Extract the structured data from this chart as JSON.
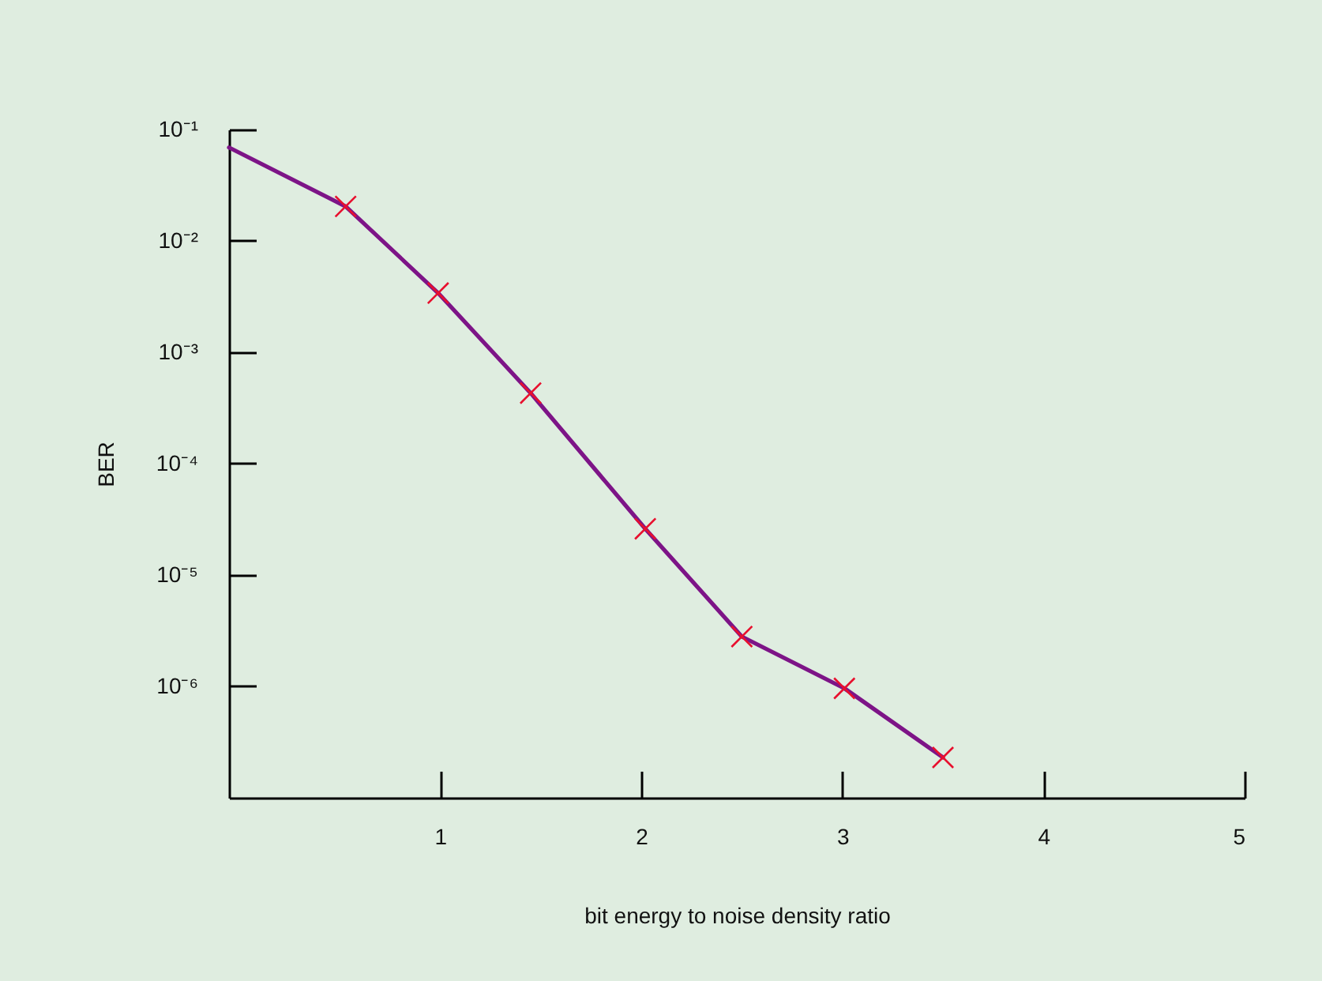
{
  "chart_data": {
    "type": "line",
    "xlabel": "bit energy to noise density ratio",
    "ylabel": "BER",
    "xlim": [
      -0.05,
      5
    ],
    "xticks": [
      1,
      2,
      3,
      4,
      5
    ],
    "ylim": [
      1e-07,
      0.1
    ],
    "yticks": [
      {
        "value": 0.1,
        "label": "10⁻¹"
      },
      {
        "value": 0.01,
        "label": "10⁻²"
      },
      {
        "value": 0.001,
        "label": "10⁻³"
      },
      {
        "value": 0.0001,
        "label": "10⁻⁴"
      },
      {
        "value": 1e-05,
        "label": "10⁻⁵"
      },
      {
        "value": 1e-06,
        "label": "10⁻⁶"
      }
    ],
    "log": "y",
    "grid": false,
    "series": [
      {
        "type": "line",
        "color": "#7d1487",
        "marker": "none",
        "x": [
          -0.05,
          0.53,
          0.99,
          1.45,
          2.02,
          2.5,
          3.01,
          3.5
        ],
        "values": [
          0.069,
          0.0204,
          0.0034,
          0.00043,
          2.6e-05,
          2.8e-06,
          9.6e-07,
          2.3e-07
        ]
      },
      {
        "type": "scatter",
        "color": "#e8102e",
        "marker": "cross",
        "x": [
          0.53,
          0.99,
          1.45,
          2.02,
          2.5,
          3.01,
          3.5
        ],
        "values": [
          0.0204,
          0.0034,
          0.00043,
          2.6e-05,
          2.8e-06,
          9.6e-07,
          2.3e-07
        ]
      }
    ]
  }
}
